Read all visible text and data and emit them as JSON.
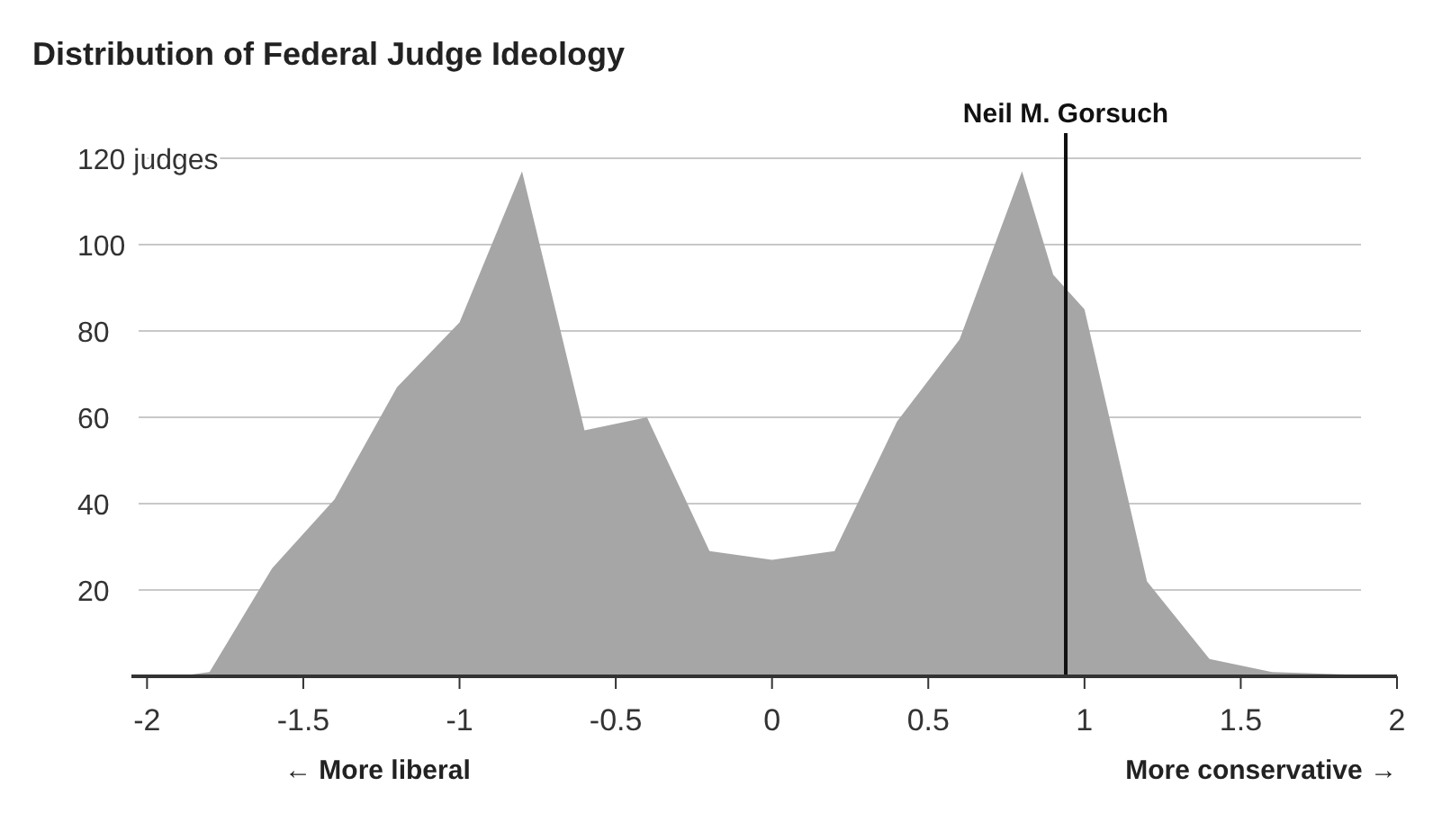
{
  "chart_data": {
    "type": "area",
    "title": "Distribution of Federal Judge Ideology",
    "x": [
      -1.9,
      -1.8,
      -1.6,
      -1.4,
      -1.2,
      -1.0,
      -0.8,
      -0.6,
      -0.4,
      -0.2,
      0,
      0.2,
      0.4,
      0.6,
      0.8,
      0.9,
      1.0,
      1.2,
      1.4,
      1.6,
      2.0
    ],
    "series": [
      {
        "color": "#a6a6a6",
        "values": [
          0,
          1,
          25,
          41,
          67,
          82,
          117,
          57,
          60,
          29,
          27,
          29,
          59,
          78,
          117,
          93,
          85,
          22,
          4,
          1,
          0
        ]
      }
    ],
    "xlim": [
      -2.05,
      2.0
    ],
    "xticks": [
      -2,
      -1.5,
      -1,
      -0.5,
      0,
      0.5,
      1,
      1.5,
      2
    ],
    "ylim": [
      0,
      125
    ],
    "yticks": [
      20,
      40,
      60,
      80,
      100,
      {
        "value": 120,
        "label": "120 judges"
      }
    ],
    "grid": "y",
    "ref_lines": [
      {
        "axis": "x",
        "value": 0.94,
        "label": "Neil M. Gorsuch",
        "color": "#111111"
      }
    ],
    "annotations": [
      "← More liberal",
      "More conservative →"
    ]
  }
}
